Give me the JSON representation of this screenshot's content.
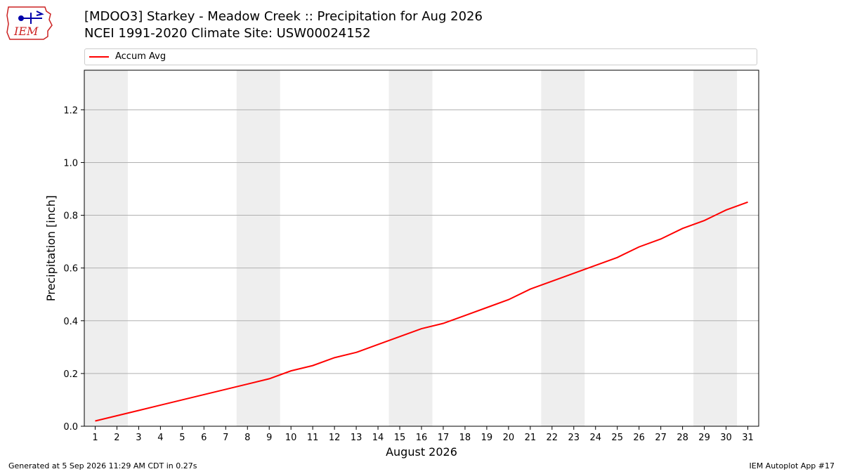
{
  "header": {
    "title_line1": "[MDOO3] Starkey - Meadow Creek :: Precipitation for Aug 2026",
    "title_line2": "NCEI 1991-2020 Climate Site: USW00024152"
  },
  "logo": {
    "text": "IEM"
  },
  "footer": {
    "generated": "Generated at 5 Sep 2026 11:29 AM CDT in 0.27s",
    "app": "IEM Autoplot App #17"
  },
  "chart_data": {
    "type": "line",
    "xlabel": "August 2026",
    "ylabel": "Precipitation [inch]",
    "xlim": [
      0.5,
      31.5
    ],
    "ylim": [
      0,
      1.35
    ],
    "x": [
      1,
      2,
      3,
      4,
      5,
      6,
      7,
      8,
      9,
      10,
      11,
      12,
      13,
      14,
      15,
      16,
      17,
      18,
      19,
      20,
      21,
      22,
      23,
      24,
      25,
      26,
      27,
      28,
      29,
      30,
      31
    ],
    "x_tick_labels": [
      "1",
      "2",
      "3",
      "4",
      "5",
      "6",
      "7",
      "8",
      "9",
      "10",
      "11",
      "12",
      "13",
      "14",
      "15",
      "16",
      "17",
      "18",
      "19",
      "20",
      "21",
      "22",
      "23",
      "24",
      "25",
      "26",
      "27",
      "28",
      "29",
      "30",
      "31"
    ],
    "y_ticks": [
      0.0,
      0.2,
      0.4,
      0.6,
      0.8,
      1.0,
      1.2
    ],
    "y_tick_labels": [
      "0.0",
      "0.2",
      "0.4",
      "0.6",
      "0.8",
      "1.0",
      "1.2"
    ],
    "grid": "horizontal",
    "legend_placement": "top",
    "weekend_shading": [
      [
        0.5,
        2.5
      ],
      [
        7.5,
        9.5
      ],
      [
        14.5,
        16.5
      ],
      [
        21.5,
        23.5
      ],
      [
        28.5,
        30.5
      ]
    ],
    "shade_color": "#eeeeee",
    "series": [
      {
        "name": "Accum Avg",
        "color": "#ff0000",
        "values": [
          0.02,
          0.04,
          0.06,
          0.08,
          0.1,
          0.12,
          0.14,
          0.16,
          0.18,
          0.21,
          0.23,
          0.26,
          0.28,
          0.31,
          0.34,
          0.37,
          0.39,
          0.42,
          0.45,
          0.48,
          0.52,
          0.55,
          0.58,
          0.61,
          0.64,
          0.68,
          0.71,
          0.75,
          0.78,
          0.82,
          0.85
        ]
      }
    ]
  }
}
